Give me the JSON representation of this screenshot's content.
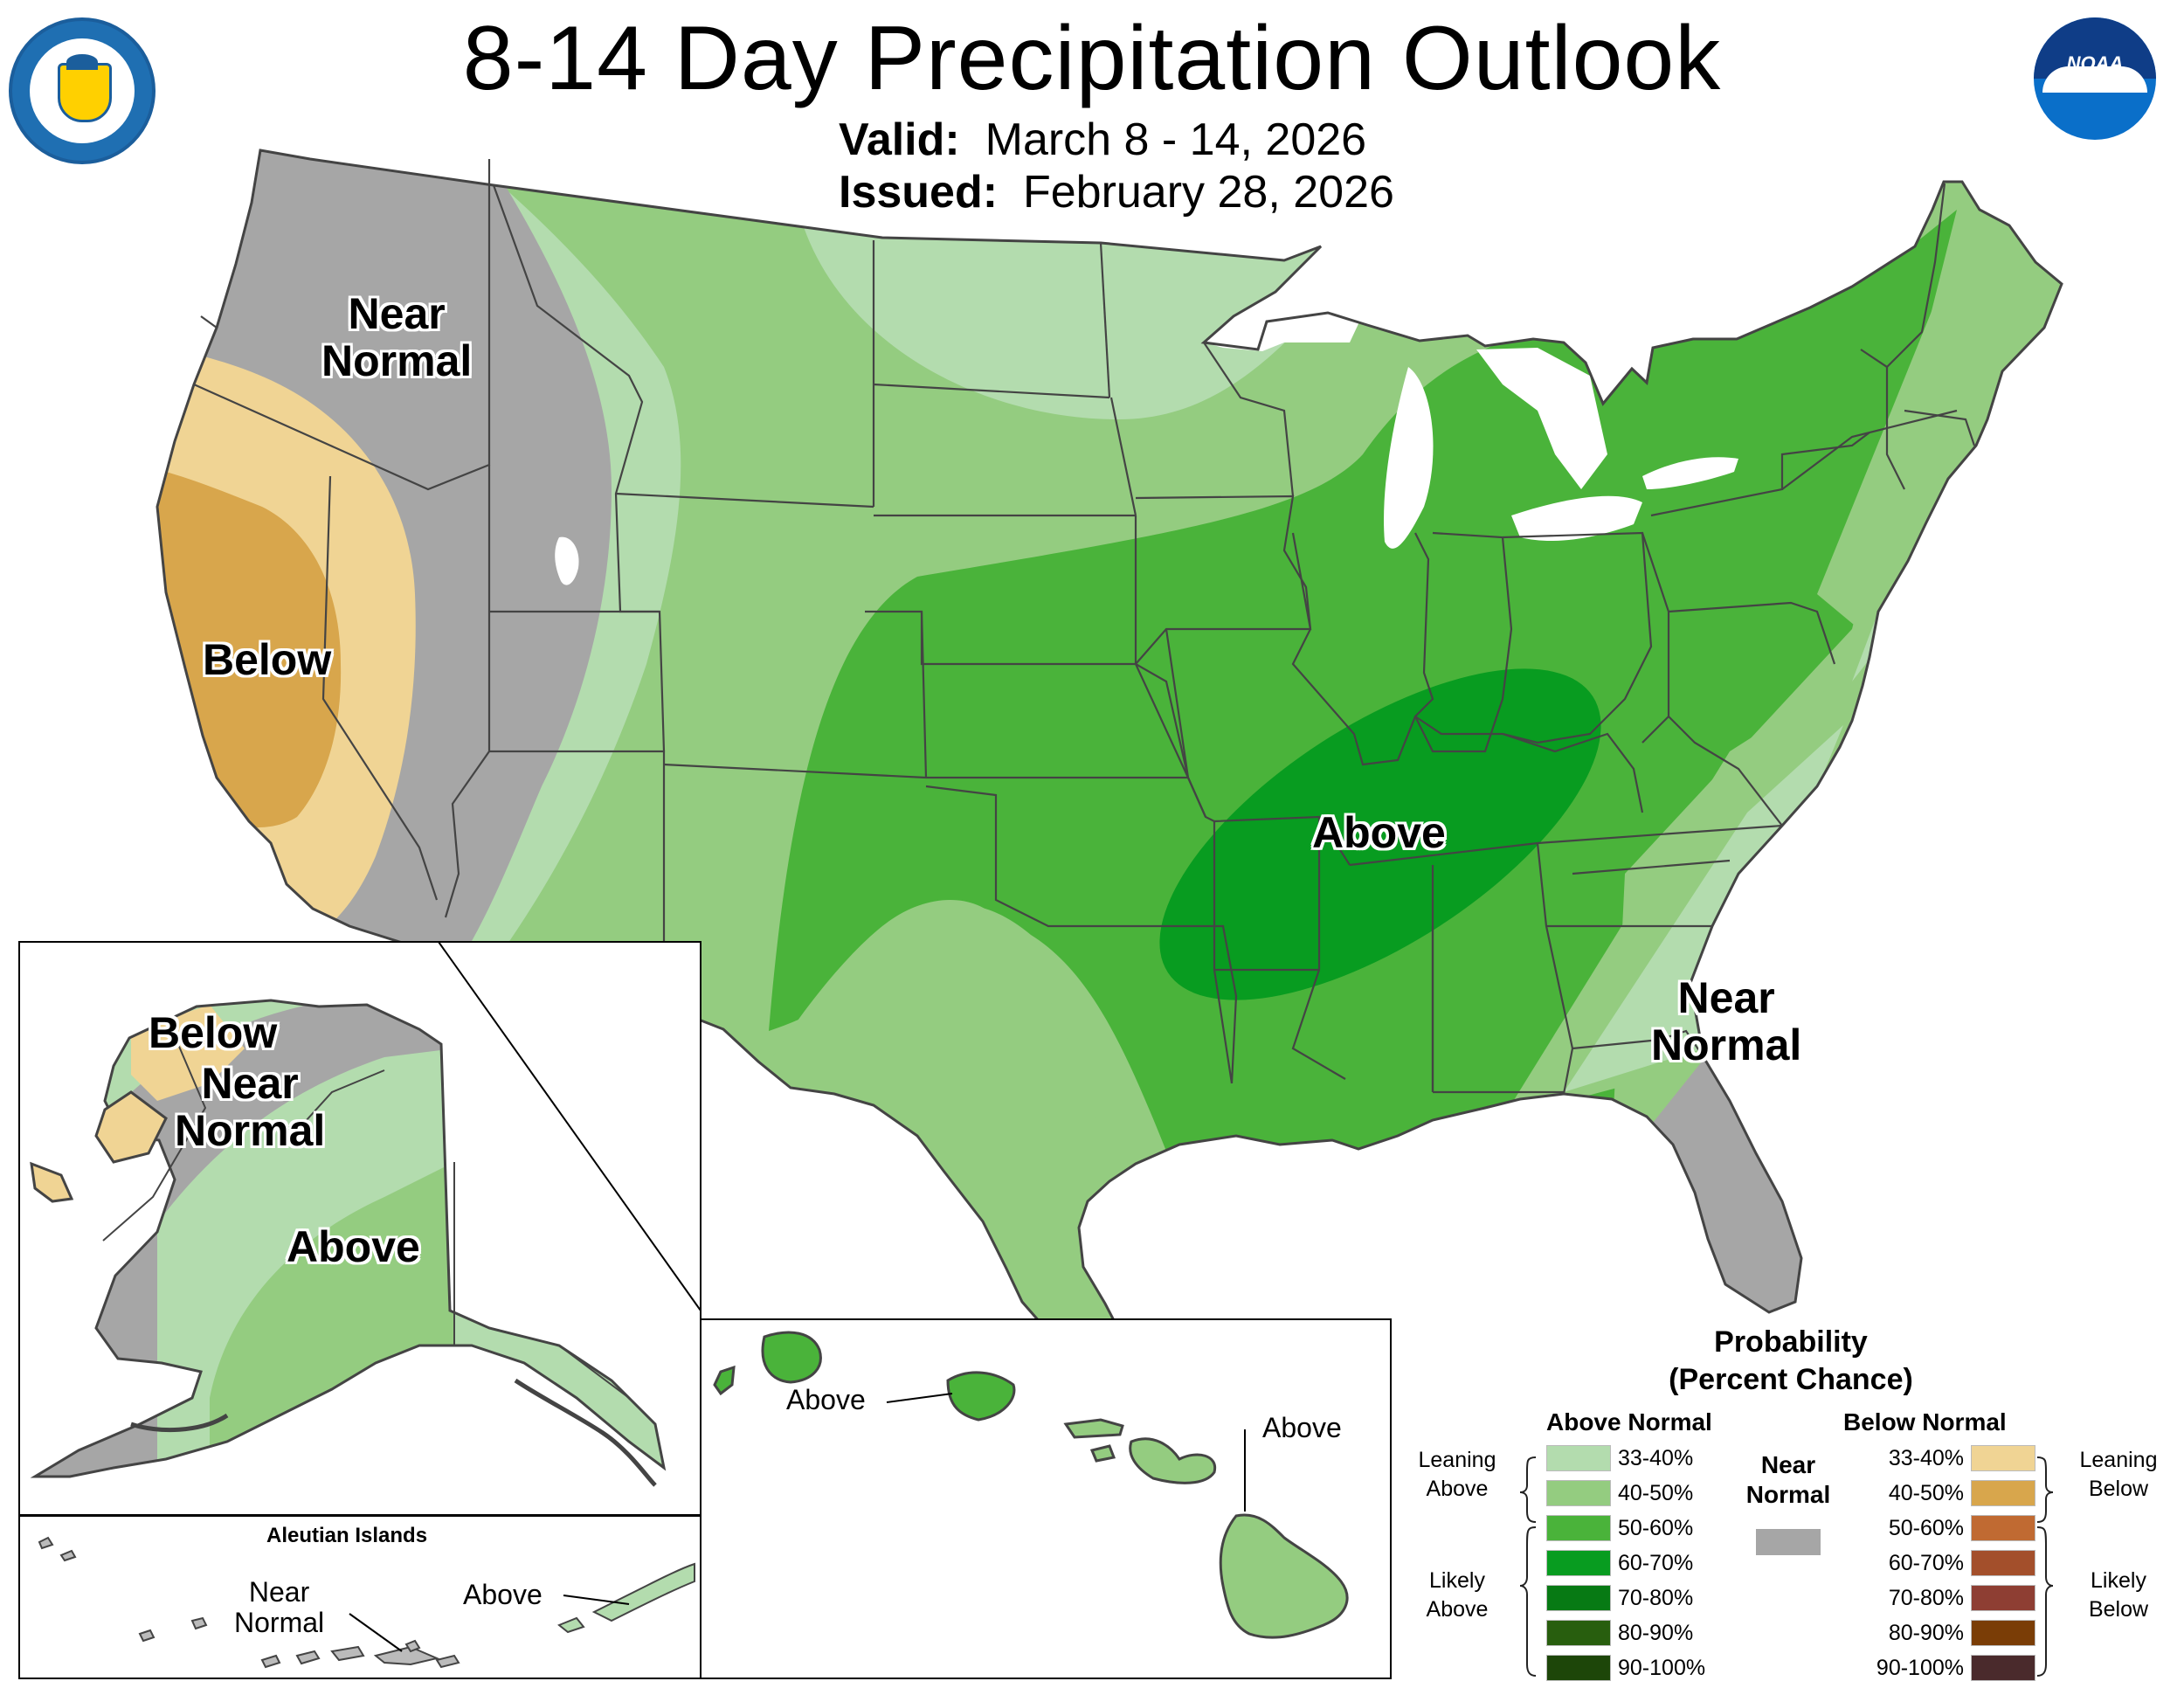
{
  "header": {
    "title": "8-14 Day Precipitation Outlook",
    "valid_label": "Valid:",
    "valid_value": "March 8 - 14, 2026",
    "issued_label": "Issued:",
    "issued_value": "February 28, 2026"
  },
  "logos": {
    "commerce_icon": "department-of-commerce-seal",
    "noaa_icon": "noaa-logo",
    "noaa_text": "NOAA"
  },
  "map_labels": {
    "conus_near_normal_nw": "Near\nNormal",
    "conus_below": "Below",
    "conus_above": "Above",
    "conus_near_normal_se": "Near\nNormal",
    "alaska_below": "Below",
    "alaska_near_normal": "Near\nNormal",
    "alaska_above": "Above",
    "aleutian_title": "Aleutian Islands",
    "aleutian_near_normal": "Near\nNormal",
    "aleutian_above": "Above",
    "hawaii_above_west": "Above",
    "hawaii_above_east": "Above"
  },
  "legend": {
    "title": "Probability\n(Percent Chance)",
    "above_header": "Above Normal",
    "below_header": "Below Normal",
    "near_normal": "Near\nNormal",
    "leaning_above": "Leaning\nAbove",
    "likely_above": "Likely\nAbove",
    "leaning_below": "Leaning\nBelow",
    "likely_below": "Likely\nBelow",
    "above_levels": [
      {
        "range": "33-40%",
        "color": "#b3dcae"
      },
      {
        "range": "40-50%",
        "color": "#94cc80"
      },
      {
        "range": "50-60%",
        "color": "#4ab33a"
      },
      {
        "range": "60-70%",
        "color": "#089c20"
      },
      {
        "range": "70-80%",
        "color": "#077a14"
      },
      {
        "range": "80-90%",
        "color": "#285e0e"
      },
      {
        "range": "90-100%",
        "color": "#1d4609"
      }
    ],
    "below_levels": [
      {
        "range": "33-40%",
        "color": "#f0d494"
      },
      {
        "range": "40-50%",
        "color": "#d8a64c"
      },
      {
        "range": "50-60%",
        "color": "#c06a32"
      },
      {
        "range": "60-70%",
        "color": "#a34f2b"
      },
      {
        "range": "70-80%",
        "color": "#8e3e33"
      },
      {
        "range": "80-90%",
        "color": "#7a3d06"
      },
      {
        "range": "90-100%",
        "color": "#4a2a2c"
      }
    ],
    "near_normal_color": "#a6a6a6"
  }
}
